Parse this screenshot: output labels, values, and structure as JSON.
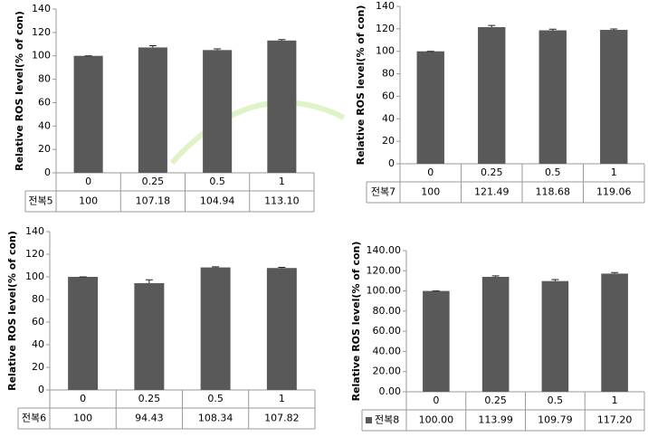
{
  "chart_data": [
    {
      "type": "bar",
      "y_label": "Relative ROS level(% of con)",
      "categories": [
        "0",
        "0.25",
        "0.5",
        "1"
      ],
      "series": [
        {
          "name": "전복5",
          "color": "#595959",
          "values": [
            100,
            107.18,
            104.94,
            113.1
          ],
          "value_labels": [
            "100",
            "107.18",
            "104.94",
            "113.10"
          ],
          "errors": [
            0,
            1.5,
            1,
            0.8
          ]
        }
      ],
      "ylim": [
        0,
        140
      ],
      "yticks": [
        0,
        20,
        40,
        60,
        80,
        100,
        120,
        140
      ],
      "legend": false
    },
    {
      "type": "bar",
      "y_label": "Relative ROS level(% of con)",
      "categories": [
        "0",
        "0.25",
        "0.5",
        "1"
      ],
      "series": [
        {
          "name": "전복7",
          "color": "#595959",
          "values": [
            100,
            121.49,
            118.68,
            119.06
          ],
          "errors": [
            0,
            1.5,
            1,
            0.8
          ]
        }
      ],
      "ylim": [
        0,
        140
      ],
      "yticks": [
        0,
        20,
        40,
        60,
        80,
        100,
        120,
        140
      ],
      "legend": false
    },
    {
      "type": "bar",
      "y_label": "Relative ROS level(% of con)",
      "categories": [
        "0",
        "0.25",
        "0.5",
        "1"
      ],
      "series": [
        {
          "name": "전복6",
          "color": "#595959",
          "values": [
            100,
            94.43,
            108.34,
            107.82
          ],
          "errors": [
            0,
            3,
            0.6,
            0.6
          ]
        }
      ],
      "ylim": [
        0,
        140
      ],
      "yticks": [
        0,
        20,
        40,
        60,
        80,
        100,
        120,
        140
      ],
      "legend": false
    },
    {
      "type": "bar",
      "y_label": "Relative ROS level(% of con)",
      "categories": [
        "0",
        "0.25",
        "0.5",
        "1"
      ],
      "series": [
        {
          "name": "전복8",
          "color": "#595959",
          "values": [
            100,
            113.99,
            109.79,
            117.2
          ],
          "value_labels": [
            "100.00",
            "113.99",
            "109.79",
            "117.20"
          ],
          "errors": [
            0,
            1,
            1.5,
            1
          ]
        }
      ],
      "ylim": [
        0,
        140
      ],
      "yticks": [
        {
          "value": 0,
          "label": "0.00"
        },
        {
          "value": 20,
          "label": "20.00"
        },
        {
          "value": 40,
          "label": "40.00"
        },
        {
          "value": 60,
          "label": "60.00"
        },
        {
          "value": 80,
          "label": "80.00"
        },
        {
          "value": 100,
          "label": "100.00"
        },
        {
          "value": 120,
          "label": "120.00"
        },
        {
          "value": 140,
          "label": "140.00"
        }
      ],
      "legend": true
    }
  ]
}
